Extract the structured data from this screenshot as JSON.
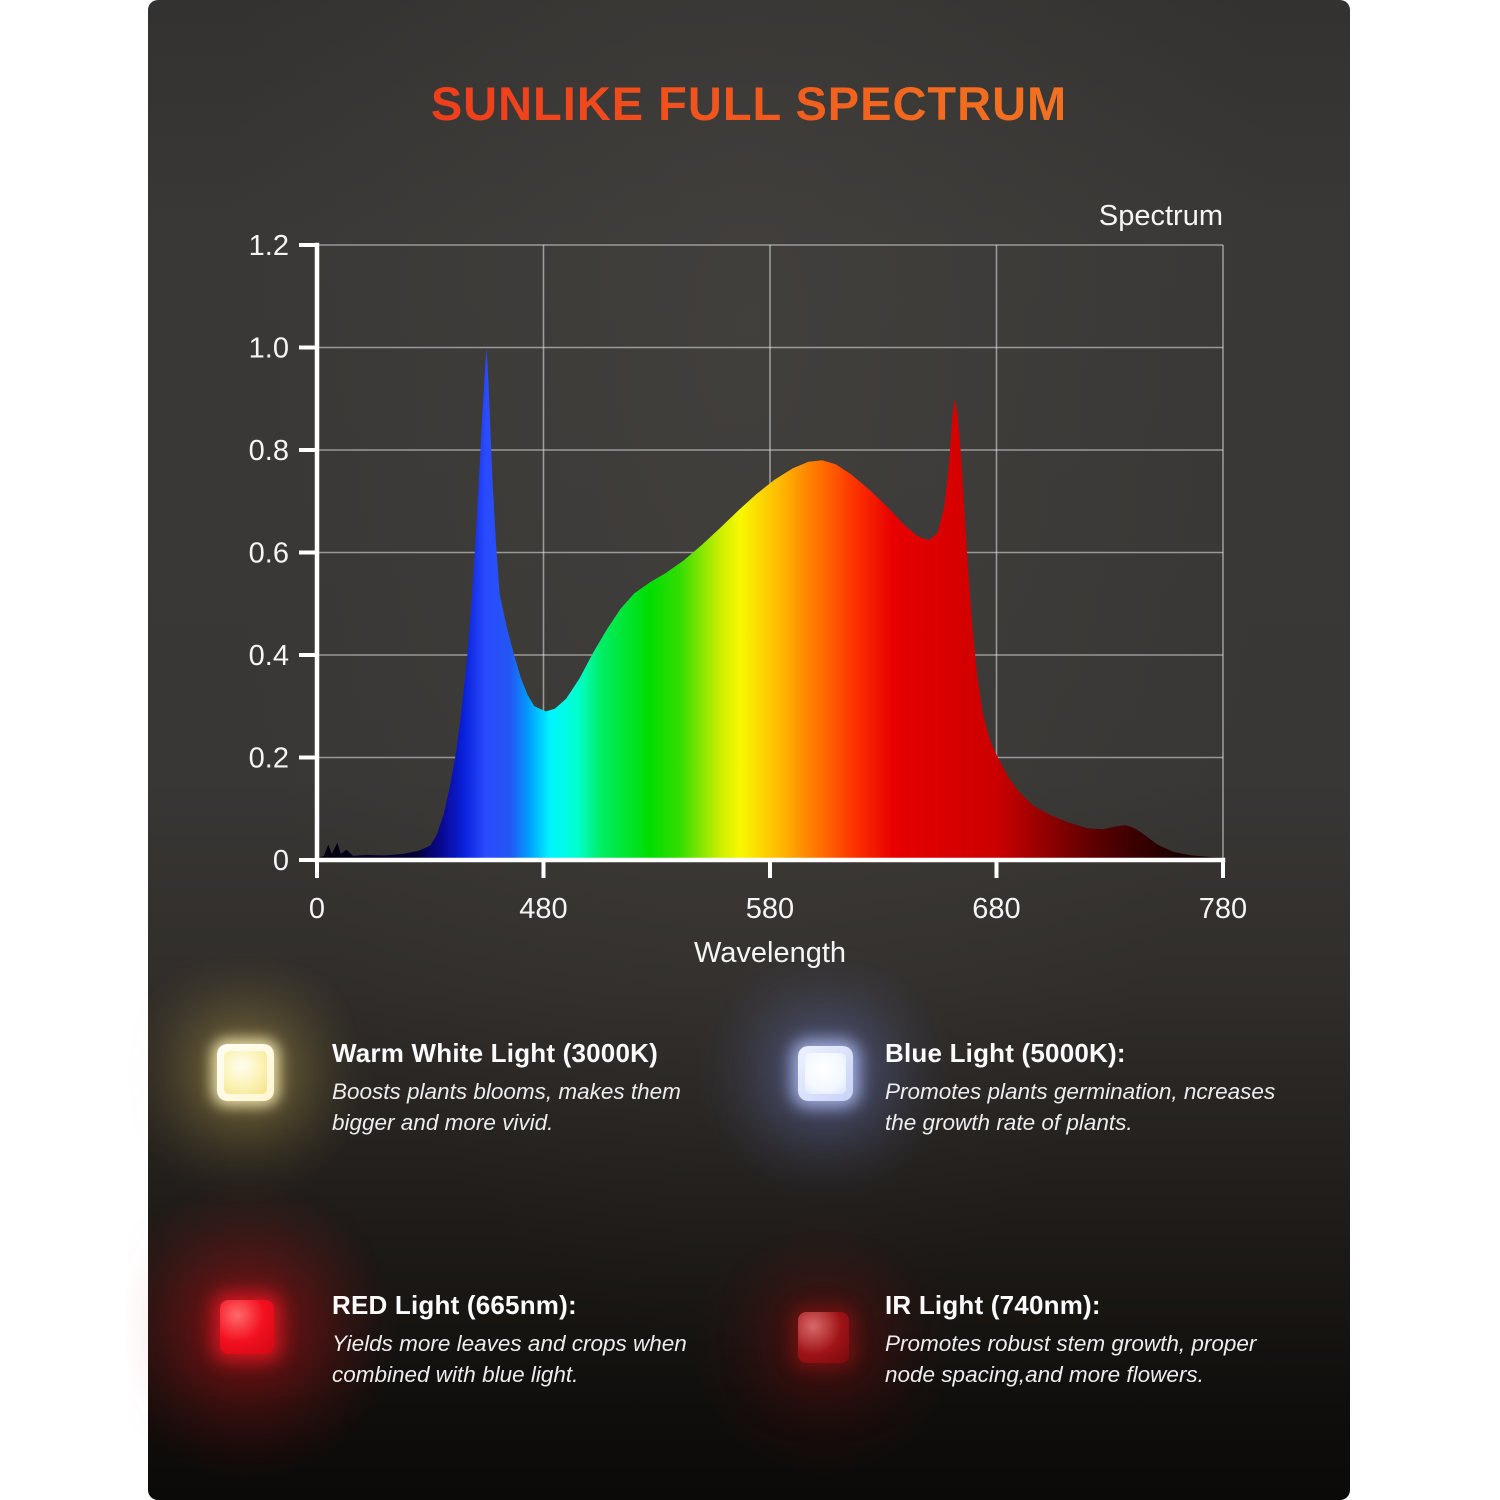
{
  "title": "SUNLIKE FULL SPECTRUM",
  "title_colors": {
    "from": "#ee3318",
    "to": "#f08026"
  },
  "chart_data": {
    "type": "area",
    "legend": "Spectrum",
    "xlabel": "Wavelength",
    "x_tick_labels": [
      "0",
      "480",
      "580",
      "680",
      "780"
    ],
    "x_tick_positions": [
      0,
      1,
      2,
      3,
      4
    ],
    "y_tick_labels": [
      "0",
      "0.2",
      "0.4",
      "0.6",
      "0.8",
      "1.0",
      "1.2"
    ],
    "y_tick_values": [
      0,
      0.2,
      0.4,
      0.6,
      0.8,
      1.0,
      1.2
    ],
    "xlim": [
      0,
      4
    ],
    "ylim": [
      0,
      1.2
    ],
    "grid": true,
    "axis_color": "#ffffff",
    "grid_color": "#e8e8e8",
    "label_color": "#f5f5f5",
    "series": [
      {
        "name": "Spectrum",
        "points": [
          [
            0,
            0.004
          ],
          [
            0.03,
            0.008
          ],
          [
            0.05,
            0.03
          ],
          [
            0.065,
            0.012
          ],
          [
            0.09,
            0.034
          ],
          [
            0.105,
            0.012
          ],
          [
            0.13,
            0.02
          ],
          [
            0.16,
            0.008
          ],
          [
            0.22,
            0.01
          ],
          [
            0.3,
            0.009
          ],
          [
            0.38,
            0.012
          ],
          [
            0.45,
            0.018
          ],
          [
            0.5,
            0.028
          ],
          [
            0.53,
            0.05
          ],
          [
            0.56,
            0.09
          ],
          [
            0.585,
            0.14
          ],
          [
            0.61,
            0.2
          ],
          [
            0.635,
            0.28
          ],
          [
            0.66,
            0.38
          ],
          [
            0.682,
            0.5
          ],
          [
            0.7,
            0.62
          ],
          [
            0.717,
            0.76
          ],
          [
            0.731,
            0.88
          ],
          [
            0.742,
            0.96
          ],
          [
            0.748,
            1.0
          ],
          [
            0.754,
            0.96
          ],
          [
            0.763,
            0.87
          ],
          [
            0.775,
            0.74
          ],
          [
            0.79,
            0.62
          ],
          [
            0.806,
            0.52
          ],
          [
            0.835,
            0.46
          ],
          [
            0.87,
            0.4
          ],
          [
            0.9,
            0.355
          ],
          [
            0.93,
            0.322
          ],
          [
            0.96,
            0.3
          ],
          [
            1.01,
            0.29
          ],
          [
            1.05,
            0.295
          ],
          [
            1.1,
            0.315
          ],
          [
            1.16,
            0.355
          ],
          [
            1.22,
            0.405
          ],
          [
            1.28,
            0.45
          ],
          [
            1.34,
            0.49
          ],
          [
            1.4,
            0.52
          ],
          [
            1.47,
            0.542
          ],
          [
            1.54,
            0.56
          ],
          [
            1.62,
            0.585
          ],
          [
            1.7,
            0.615
          ],
          [
            1.78,
            0.648
          ],
          [
            1.86,
            0.682
          ],
          [
            1.94,
            0.714
          ],
          [
            2.02,
            0.742
          ],
          [
            2.1,
            0.764
          ],
          [
            2.17,
            0.777
          ],
          [
            2.23,
            0.78
          ],
          [
            2.29,
            0.772
          ],
          [
            2.36,
            0.752
          ],
          [
            2.44,
            0.722
          ],
          [
            2.52,
            0.688
          ],
          [
            2.59,
            0.655
          ],
          [
            2.65,
            0.632
          ],
          [
            2.7,
            0.624
          ],
          [
            2.74,
            0.638
          ],
          [
            2.77,
            0.69
          ],
          [
            2.79,
            0.77
          ],
          [
            2.805,
            0.862
          ],
          [
            2.815,
            0.9
          ],
          [
            2.828,
            0.872
          ],
          [
            2.845,
            0.78
          ],
          [
            2.862,
            0.66
          ],
          [
            2.878,
            0.545
          ],
          [
            2.895,
            0.45
          ],
          [
            2.915,
            0.36
          ],
          [
            2.94,
            0.285
          ],
          [
            2.97,
            0.235
          ],
          [
            3.0,
            0.205
          ],
          [
            3.05,
            0.163
          ],
          [
            3.1,
            0.133
          ],
          [
            3.16,
            0.107
          ],
          [
            3.24,
            0.087
          ],
          [
            3.32,
            0.073
          ],
          [
            3.4,
            0.062
          ],
          [
            3.47,
            0.06
          ],
          [
            3.53,
            0.066
          ],
          [
            3.57,
            0.068
          ],
          [
            3.61,
            0.062
          ],
          [
            3.66,
            0.047
          ],
          [
            3.71,
            0.03
          ],
          [
            3.78,
            0.016
          ],
          [
            3.86,
            0.009
          ],
          [
            3.94,
            0.006
          ],
          [
            4.0,
            0.004
          ]
        ]
      }
    ],
    "fill_gradient": [
      {
        "offset": 0.0,
        "color": "#05000a"
      },
      {
        "offset": 0.11,
        "color": "#03003a"
      },
      {
        "offset": 0.14,
        "color": "#0a0a9a"
      },
      {
        "offset": 0.163,
        "color": "#0a22dd"
      },
      {
        "offset": 0.187,
        "color": "#2b4bff"
      },
      {
        "offset": 0.213,
        "color": "#2356f2"
      },
      {
        "offset": 0.235,
        "color": "#00a2ff"
      },
      {
        "offset": 0.258,
        "color": "#00f6ff"
      },
      {
        "offset": 0.288,
        "color": "#00ffcc"
      },
      {
        "offset": 0.313,
        "color": "#00ee66"
      },
      {
        "offset": 0.367,
        "color": "#00dd00"
      },
      {
        "offset": 0.4,
        "color": "#33dd00"
      },
      {
        "offset": 0.445,
        "color": "#cbee00"
      },
      {
        "offset": 0.467,
        "color": "#f8f800"
      },
      {
        "offset": 0.515,
        "color": "#ffb300"
      },
      {
        "offset": 0.54,
        "color": "#ff8800"
      },
      {
        "offset": 0.593,
        "color": "#ff3300"
      },
      {
        "offset": 0.635,
        "color": "#e80000"
      },
      {
        "offset": 0.75,
        "color": "#cb0000"
      },
      {
        "offset": 0.8,
        "color": "#960000"
      },
      {
        "offset": 0.85,
        "color": "#640000"
      },
      {
        "offset": 0.9,
        "color": "#3c0000"
      },
      {
        "offset": 0.95,
        "color": "#1d0000"
      },
      {
        "offset": 1.0,
        "color": "#0c0000"
      }
    ]
  },
  "features": [
    {
      "heading": "Warm White Light (3000K)",
      "description": "Boosts plants blooms, makes them bigger and more vivid.",
      "icon": "warm-white-led-icon",
      "icon_color": "#fbf2b4"
    },
    {
      "heading": "Blue Light (5000K):",
      "description": "Promotes plants germination, ncreases the growth rate of plants.",
      "icon": "blue-led-icon",
      "icon_color": "#f3f8ff"
    },
    {
      "heading": "RED Light (665nm):",
      "description": "Yields more leaves and crops when combined with blue light.",
      "icon": "red-led-icon",
      "icon_color": "#f3101f"
    },
    {
      "heading": "IR Light (740nm):",
      "description": "Promotes robust stem growth, proper node spacing,and more flowers.",
      "icon": "ir-led-icon",
      "icon_color": "#9e1316"
    }
  ]
}
